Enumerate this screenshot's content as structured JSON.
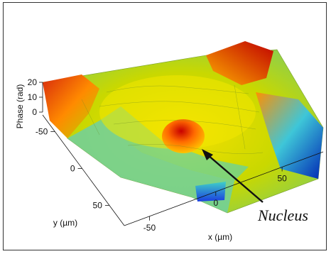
{
  "chart_data": {
    "type": "surface",
    "title": "",
    "zlabel": "Phase (rad)",
    "xlabel": "x (µm)",
    "ylabel": "y (µm)",
    "x_ticks": [
      "-50",
      "0",
      "50"
    ],
    "y_ticks": [
      "-50",
      "0",
      "50"
    ],
    "z_ticks": [
      "0",
      "10",
      "20"
    ],
    "zlim": [
      0,
      20
    ],
    "annotation": "Nucleus",
    "colormap": "jet",
    "grid": false
  }
}
